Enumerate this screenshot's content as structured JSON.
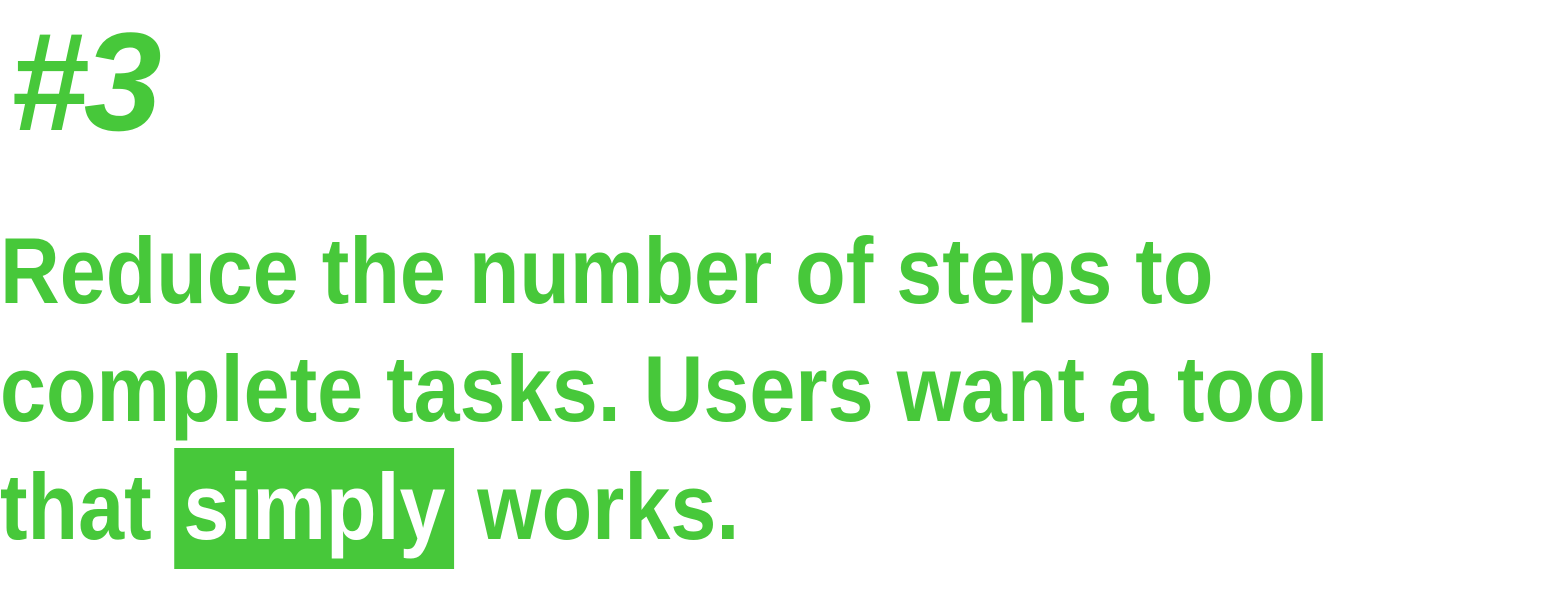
{
  "heading": "#3",
  "statement": {
    "lines": [
      "Reduce the number of steps to",
      "complete tasks. Users want a tool"
    ],
    "last_line": {
      "before": "that",
      "highlight": "simply",
      "after": "works."
    }
  }
}
